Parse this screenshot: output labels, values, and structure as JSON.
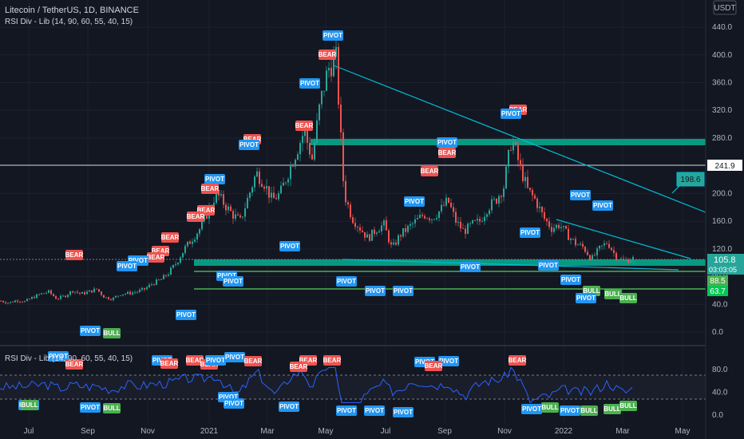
{
  "header": {
    "title": "Litecoin / TetherUS, 1D, BINANCE",
    "indicator": "RSI Div - Lib (14, 90, 60, 55, 40, 15)",
    "subpanel_title": "RSI Div - Lib (14, 90, 60, 55, 40, 15)",
    "currency": "USDT"
  },
  "colors": {
    "background": "#131722",
    "grid": "#1e222d",
    "up": "#26a69a",
    "down": "#ef5350",
    "trendline": "#00bcd4",
    "zone": "#089981",
    "support": "#4caf50",
    "pivot_blue": "#2196f3",
    "bear_red": "#ef5350",
    "bull_green": "#4caf50",
    "rsi_line": "#2962ff"
  },
  "chart_data": [
    {
      "type": "candlestick",
      "title": "Litecoin / TetherUS, 1D, BINANCE",
      "ylim": [
        -20,
        480
      ],
      "y_ticks": [
        "0.0",
        "40.0",
        "80.0",
        "120.0",
        "160.0",
        "200.0",
        "240.0",
        "280.0",
        "320.0",
        "360.0",
        "400.0",
        "440.0"
      ],
      "x_ticks": [
        "Jul",
        "Sep",
        "Nov",
        "2021",
        "Mar",
        "May",
        "Jul",
        "Sep",
        "Nov",
        "2022",
        "Mar",
        "May"
      ],
      "close_path": [
        [
          0,
          45
        ],
        [
          10,
          42
        ],
        [
          20,
          46
        ],
        [
          30,
          44
        ],
        [
          40,
          50
        ],
        [
          50,
          55
        ],
        [
          60,
          58
        ],
        [
          70,
          48
        ],
        [
          80,
          52
        ],
        [
          90,
          60
        ],
        [
          100,
          55
        ],
        [
          110,
          58
        ],
        [
          120,
          62
        ],
        [
          130,
          50
        ],
        [
          140,
          48
        ],
        [
          150,
          55
        ],
        [
          160,
          56
        ],
        [
          170,
          58
        ],
        [
          180,
          62
        ],
        [
          190,
          70
        ],
        [
          200,
          75
        ],
        [
          210,
          85
        ],
        [
          220,
          100
        ],
        [
          230,
          120
        ],
        [
          240,
          135
        ],
        [
          250,
          150
        ],
        [
          260,
          175
        ],
        [
          270,
          200
        ],
        [
          280,
          185
        ],
        [
          290,
          170
        ],
        [
          300,
          160
        ],
        [
          310,
          195
        ],
        [
          320,
          230
        ],
        [
          330,
          215
        ],
        [
          340,
          190
        ],
        [
          350,
          200
        ],
        [
          360,
          230
        ],
        [
          370,
          260
        ],
        [
          380,
          290
        ],
        [
          390,
          250
        ],
        [
          400,
          330
        ],
        [
          410,
          380
        ],
        [
          420,
          395
        ],
        [
          430,
          200
        ],
        [
          440,
          165
        ],
        [
          450,
          150
        ],
        [
          460,
          135
        ],
        [
          470,
          148
        ],
        [
          480,
          155
        ],
        [
          490,
          120
        ],
        [
          500,
          140
        ],
        [
          510,
          150
        ],
        [
          520,
          160
        ],
        [
          530,
          170
        ],
        [
          540,
          165
        ],
        [
          550,
          175
        ],
        [
          560,
          190
        ],
        [
          570,
          160
        ],
        [
          580,
          145
        ],
        [
          590,
          155
        ],
        [
          600,
          160
        ],
        [
          610,
          180
        ],
        [
          620,
          190
        ],
        [
          630,
          210
        ],
        [
          640,
          280
        ],
        [
          650,
          240
        ],
        [
          660,
          205
        ],
        [
          670,
          190
        ],
        [
          680,
          165
        ],
        [
          690,
          150
        ],
        [
          700,
          155
        ],
        [
          710,
          140
        ],
        [
          720,
          128
        ],
        [
          730,
          122
        ],
        [
          740,
          105
        ],
        [
          750,
          120
        ],
        [
          760,
          130
        ],
        [
          770,
          110
        ],
        [
          780,
          102
        ],
        [
          790,
          106
        ]
      ],
      "current_price": "105.8",
      "countdown": "03:03:05",
      "price_line": "241.9",
      "projection_label": "198.6",
      "support_labels": [
        "88.5",
        "63.7"
      ],
      "markers": [
        {
          "text": "PIVOT",
          "kind": "pivot"
        },
        {
          "text": "BEAR",
          "kind": "bear"
        },
        {
          "text": "BULL",
          "kind": "bull"
        }
      ]
    },
    {
      "type": "line",
      "title": "RSI Div - Lib (14, 90, 60, 55, 40, 15)",
      "ylim": [
        0,
        100
      ],
      "y_ticks": [
        "0.0",
        "40.0",
        "80.0"
      ],
      "bands": [
        30,
        70
      ]
    }
  ]
}
